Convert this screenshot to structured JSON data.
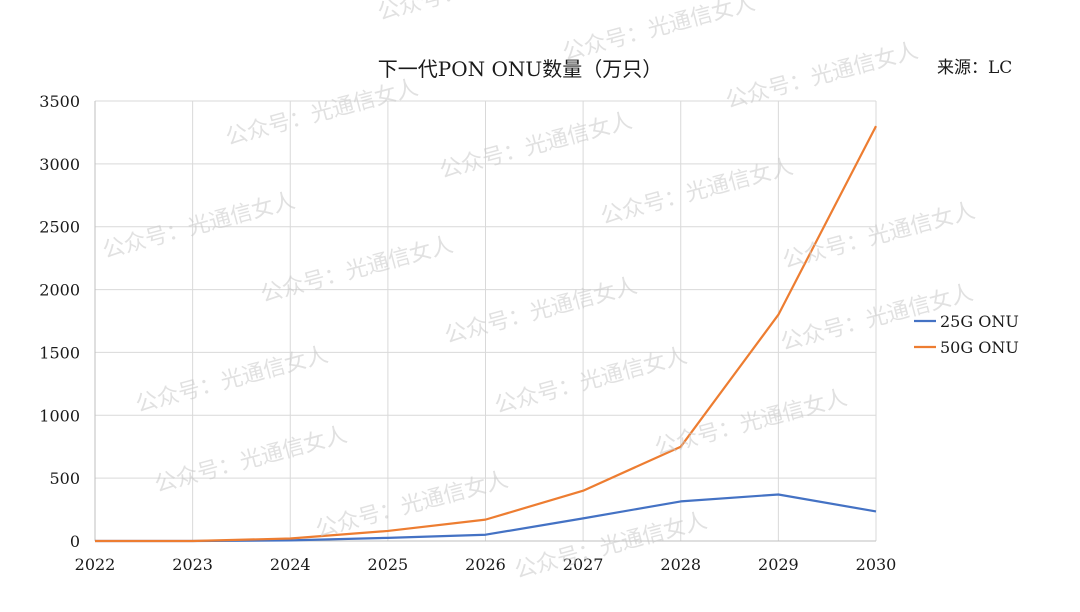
{
  "chart_data": {
    "type": "line",
    "title": "下一代PON ONU数量（万只）",
    "source": "来源：LC",
    "xlabel": "",
    "ylabel": "",
    "x": [
      "2022",
      "2023",
      "2024",
      "2025",
      "2026",
      "2027",
      "2028",
      "2029",
      "2030"
    ],
    "ylim": [
      0,
      3500
    ],
    "yticks": [
      0,
      500,
      1000,
      1500,
      2000,
      2500,
      3000,
      3500
    ],
    "grid": true,
    "legend_position": "right",
    "series": [
      {
        "name": "25G ONU",
        "color": "#4472C4",
        "values": [
          0,
          0,
          5,
          25,
          50,
          180,
          315,
          370,
          235
        ]
      },
      {
        "name": "50G ONU",
        "color": "#ED7D31",
        "values": [
          0,
          0,
          20,
          80,
          170,
          400,
          750,
          1800,
          3300
        ]
      }
    ]
  },
  "watermark": "公众号：光通信女人"
}
